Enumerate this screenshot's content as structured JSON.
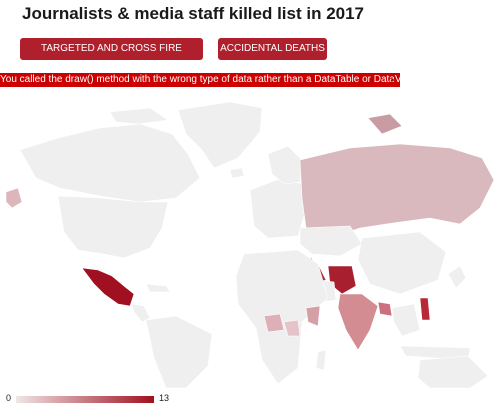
{
  "title": "Journalists & media staff killed list in 2017",
  "buttons": {
    "targeted": "TARGETED AND CROSS FIRE KILLINGS",
    "accidental": "ACCIDENTAL DEATHS"
  },
  "error": {
    "message": "You called the draw() method with the wrong type of data rather than a DataTable or DataView",
    "close": "×"
  },
  "legend": {
    "min": "0",
    "max": "13"
  },
  "colors": {
    "accent": "#b0202c",
    "error_bg": "#cc0000",
    "no_data": "#f0f0f0",
    "scale_low": "#efe6e6",
    "scale_high": "#a01020"
  }
}
